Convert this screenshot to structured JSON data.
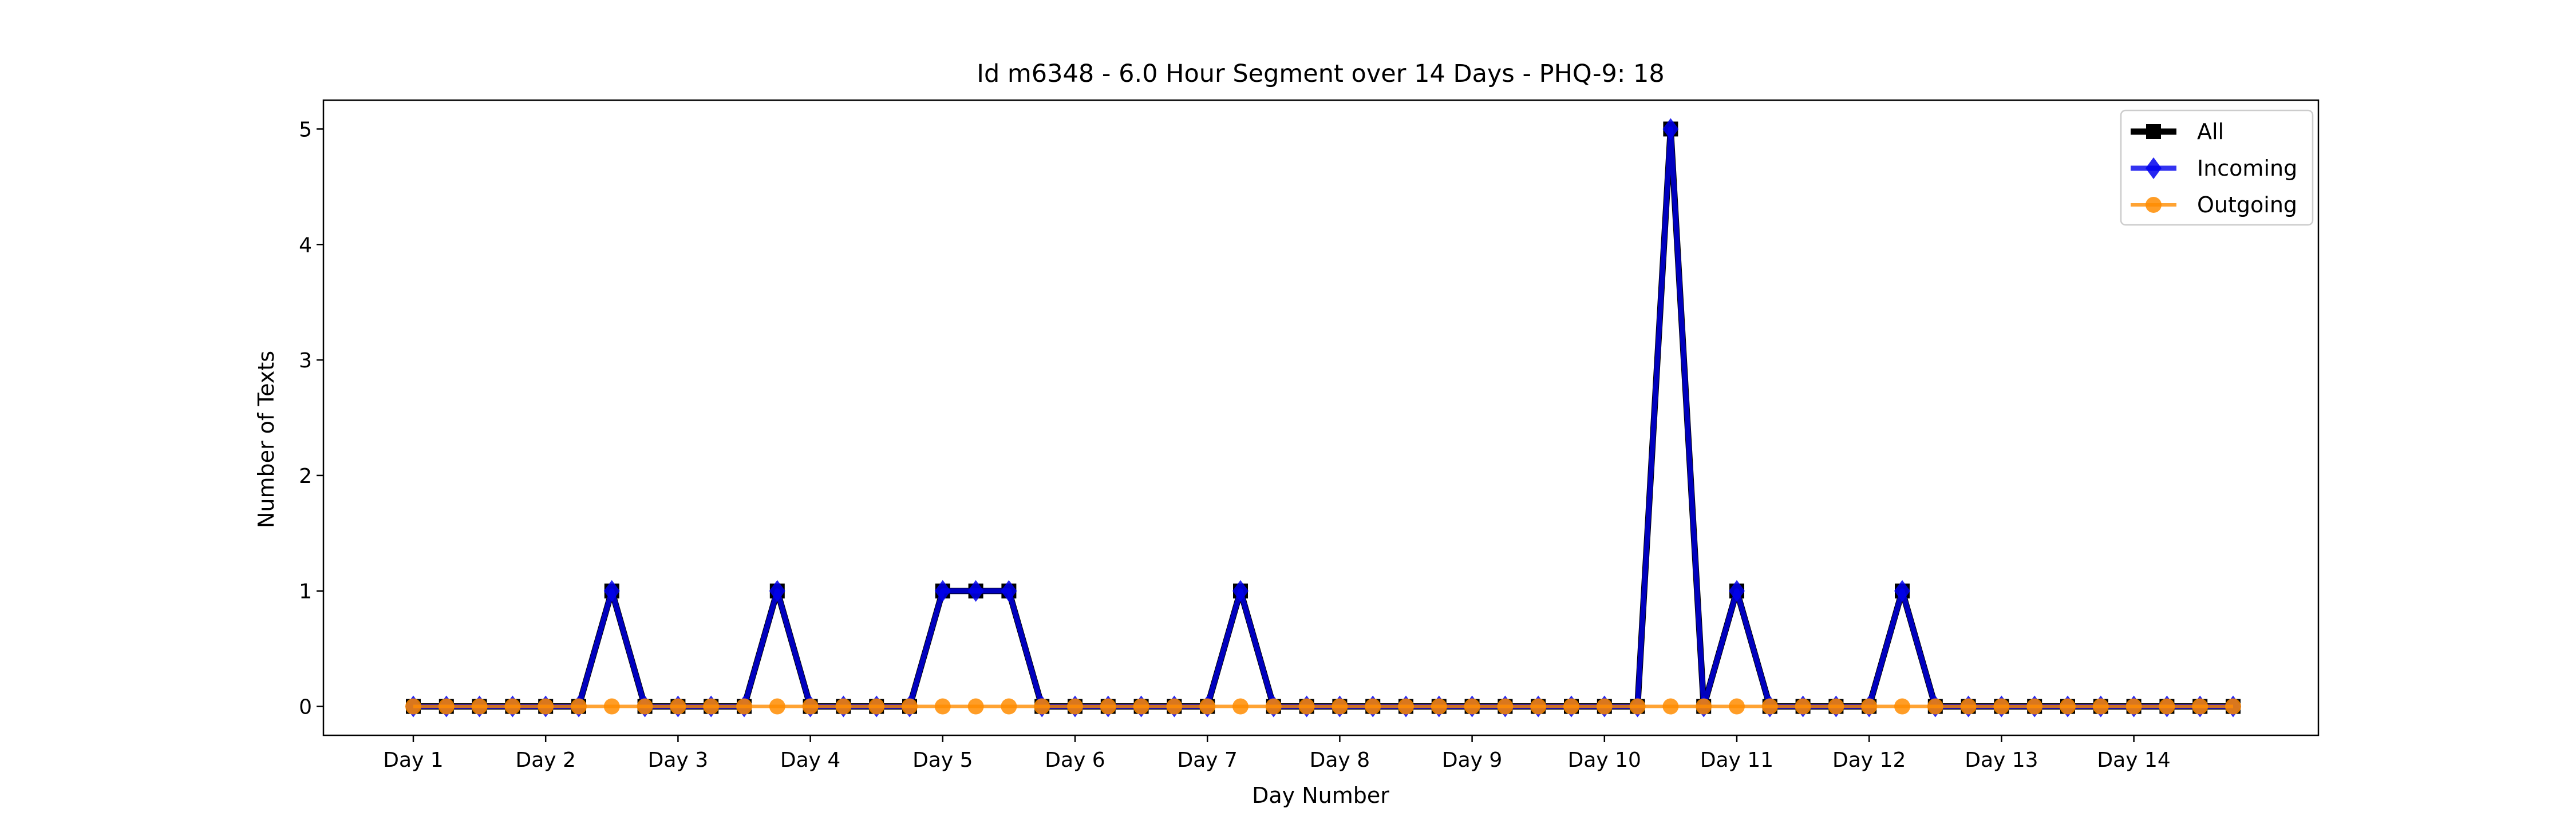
{
  "chart_data": {
    "type": "line",
    "title": "Id m6348 - 6.0 Hour Segment over 14 Days - PHQ-9: 18",
    "xlabel": "Day Number",
    "ylabel": "Number of Texts",
    "x_tick_labels": [
      "Day 1",
      "Day 2",
      "Day 3",
      "Day 4",
      "Day 5",
      "Day 6",
      "Day 7",
      "Day 8",
      "Day 9",
      "Day 10",
      "Day 11",
      "Day 12",
      "Day 13",
      "Day 14"
    ],
    "y_ticks": [
      0,
      1,
      2,
      3,
      4,
      5
    ],
    "ylim": [
      -0.25,
      5.25
    ],
    "segments_per_day": 4,
    "grid": false,
    "legend_position": "top-right",
    "series": [
      {
        "name": "All",
        "color": "#000000",
        "marker": "square",
        "values": [
          0,
          0,
          0,
          0,
          0,
          0,
          1,
          0,
          0,
          0,
          0,
          1,
          0,
          0,
          0,
          0,
          1,
          1,
          1,
          0,
          0,
          0,
          0,
          0,
          0,
          1,
          0,
          0,
          0,
          0,
          0,
          0,
          0,
          0,
          0,
          0,
          0,
          0,
          5,
          0,
          1,
          0,
          0,
          0,
          0,
          1,
          0,
          0,
          0,
          0,
          0,
          0,
          0,
          0,
          0,
          0
        ]
      },
      {
        "name": "Incoming",
        "color": "#0000ee",
        "marker": "diamond",
        "values": [
          0,
          0,
          0,
          0,
          0,
          0,
          1,
          0,
          0,
          0,
          0,
          1,
          0,
          0,
          0,
          0,
          1,
          1,
          1,
          0,
          0,
          0,
          0,
          0,
          0,
          1,
          0,
          0,
          0,
          0,
          0,
          0,
          0,
          0,
          0,
          0,
          0,
          0,
          5,
          0,
          1,
          0,
          0,
          0,
          0,
          1,
          0,
          0,
          0,
          0,
          0,
          0,
          0,
          0,
          0,
          0
        ]
      },
      {
        "name": "Outgoing",
        "color": "#ff8c00",
        "marker": "circle",
        "values": [
          0,
          0,
          0,
          0,
          0,
          0,
          0,
          0,
          0,
          0,
          0,
          0,
          0,
          0,
          0,
          0,
          0,
          0,
          0,
          0,
          0,
          0,
          0,
          0,
          0,
          0,
          0,
          0,
          0,
          0,
          0,
          0,
          0,
          0,
          0,
          0,
          0,
          0,
          0,
          0,
          0,
          0,
          0,
          0,
          0,
          0,
          0,
          0,
          0,
          0,
          0,
          0,
          0,
          0,
          0,
          0
        ]
      }
    ]
  }
}
